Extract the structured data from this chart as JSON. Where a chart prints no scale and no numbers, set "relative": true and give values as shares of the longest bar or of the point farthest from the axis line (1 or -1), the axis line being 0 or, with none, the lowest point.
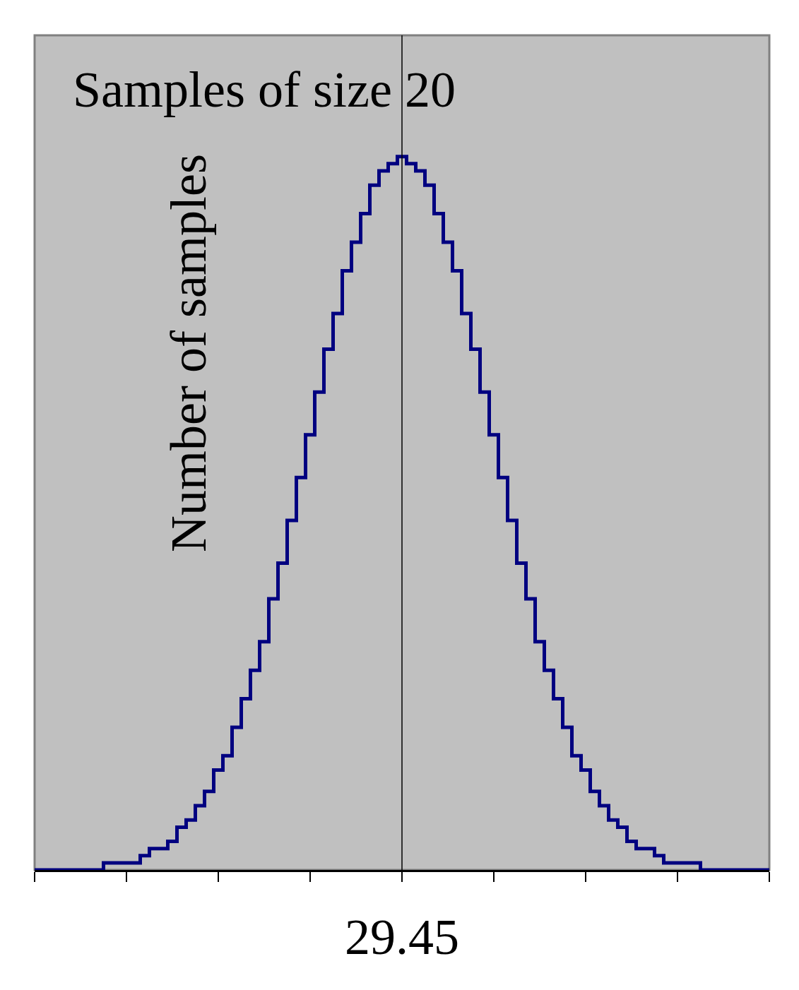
{
  "chart_data": {
    "type": "step",
    "title": "Samples of size 20",
    "ylabel": "Number of samples",
    "relative": true,
    "categories": [
      null,
      null,
      null,
      null,
      null,
      null,
      null,
      null,
      null,
      null,
      null,
      null,
      null,
      null,
      null,
      null,
      null,
      null,
      null,
      null,
      null,
      null,
      null,
      null,
      null,
      null,
      null,
      null,
      null,
      null,
      null,
      null,
      null,
      null,
      null,
      null,
      null,
      null,
      null,
      null,
      null,
      null,
      null,
      null,
      null,
      null,
      null,
      null,
      null,
      null,
      null,
      null,
      null,
      null,
      null,
      null,
      null,
      null,
      null,
      null,
      null,
      null,
      null,
      null,
      null,
      null,
      null,
      null,
      null,
      null,
      null,
      null,
      null,
      null,
      null,
      null,
      null,
      null,
      null,
      null,
      null
    ],
    "series": [
      {
        "color": "#000080",
        "values": [
          0,
          0,
          0,
          0,
          0,
          0,
          0,
          0,
          0.01,
          0.01,
          0.01,
          0.01,
          0.02,
          0.03,
          0.03,
          0.04,
          0.06,
          0.07,
          0.09,
          0.11,
          0.14,
          0.16,
          0.2,
          0.24,
          0.28,
          0.32,
          0.38,
          0.43,
          0.49,
          0.55,
          0.61,
          0.67,
          0.73,
          0.78,
          0.84,
          0.88,
          0.92,
          0.96,
          0.98,
          0.99,
          1,
          0.99,
          0.98,
          0.96,
          0.92,
          0.88,
          0.84,
          0.78,
          0.73,
          0.67,
          0.61,
          0.55,
          0.49,
          0.43,
          0.38,
          0.32,
          0.28,
          0.24,
          0.2,
          0.16,
          0.14,
          0.11,
          0.09,
          0.07,
          0.06,
          0.04,
          0.03,
          0.03,
          0.02,
          0.01,
          0.01,
          0.01,
          0.01,
          0,
          0,
          0,
          0,
          0,
          0,
          0,
          0
        ]
      }
    ],
    "xlabel": "29.45"
  }
}
